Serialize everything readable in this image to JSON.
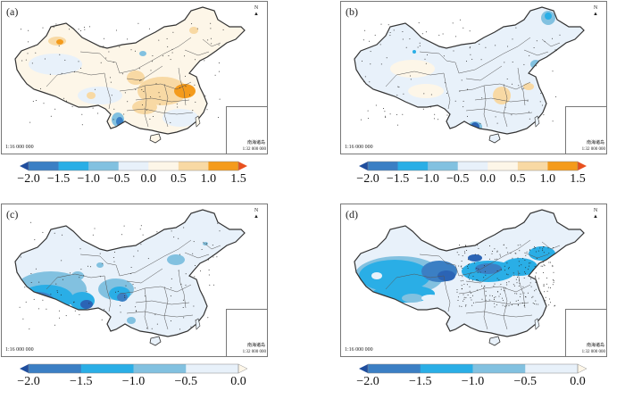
{
  "colors": {
    "c_m20": "#2b64b5",
    "c_m15": "#3b7fc4",
    "c_m10": "#2aaee6",
    "c_m05": "#82c1e0",
    "c_00": "#e8f1fa",
    "c_p05": "#fdf6e8",
    "c_p10": "#f8d9a4",
    "c_p15": "#f49b1c",
    "c_over": "#e8501e",
    "c_under": "#1f4e9e",
    "border": "#333333"
  },
  "common": {
    "north_label": "N",
    "scale_main": "1:16 000 000",
    "inset_name": "南海诸岛",
    "inset_scale": "1:32 000 000"
  },
  "panels": [
    {
      "label": "(a)",
      "colorbar": "diverging"
    },
    {
      "label": "(b)",
      "colorbar": "diverging"
    },
    {
      "label": "(c)",
      "colorbar": "negative"
    },
    {
      "label": "(d)",
      "colorbar": "negative"
    }
  ],
  "colorbars": {
    "diverging": {
      "ticks": [
        "−2.0",
        "−1.5",
        "−1.0",
        "−0.5",
        "0.0",
        "0.5",
        "1.0",
        "1.5"
      ],
      "bins": [
        "c_m15",
        "c_m10",
        "c_m05",
        "c_00",
        "c_p05",
        "c_p10",
        "c_p15"
      ],
      "under": "c_under",
      "over": "c_over"
    },
    "negative": {
      "ticks": [
        "−2.0",
        "−1.5",
        "−1.0",
        "−0.5",
        "0.0"
      ],
      "bins": [
        "c_m15",
        "c_m10",
        "c_m05",
        "c_00"
      ],
      "under": "c_under",
      "over": "c_p05"
    }
  },
  "chart_data": [
    {
      "type": "heatmap",
      "title": "(a)",
      "description": "Spatial anomaly map of China; mostly near zero (light blue / light cream), positive 0.5–1.5 patches over east-central China and north Xinjiang, negative patches (−1.0 to −2.0) in southern Yunnan",
      "legend_range": [
        -2.0,
        1.5
      ],
      "legend_ticks": [
        -2.0,
        -1.5,
        -1.0,
        -0.5,
        0.0,
        0.5,
        1.0,
        1.5
      ],
      "legend_placement": "bottom"
    },
    {
      "type": "heatmap",
      "title": "(b)",
      "description": "Mostly −0.5 to 0.5 across China; positive patches in Sichuan basin and north Xinjiang; negative patches in northeast, north China plain, Fujian and strongest in southern Yunnan",
      "legend_range": [
        -2.0,
        1.5
      ],
      "legend_ticks": [
        -2.0,
        -1.5,
        -1.0,
        -0.5,
        0.0,
        0.5,
        1.0,
        1.5
      ],
      "legend_placement": "bottom"
    },
    {
      "type": "heatmap",
      "title": "(c)",
      "description": "Negative values throughout; strongest (−1.5 to −2.0) over southern/western Tibet and western Sichuan; elsewhere mostly −0.5 to 0.0",
      "legend_range": [
        -2.0,
        0.0
      ],
      "legend_ticks": [
        -2.0,
        -1.5,
        -1.0,
        -0.5,
        0.0
      ],
      "legend_placement": "bottom"
    },
    {
      "type": "heatmap",
      "title": "(d)",
      "description": "Strong negative values (−1.0 to −2.0) over Xinjiang, Qinghai, Inner Mongolia, north China and northeast; weaker (−0.5 to 0.0) in south China",
      "legend_range": [
        -2.0,
        0.0
      ],
      "legend_ticks": [
        -2.0,
        -1.5,
        -1.0,
        -0.5,
        0.0
      ],
      "legend_placement": "bottom"
    }
  ]
}
